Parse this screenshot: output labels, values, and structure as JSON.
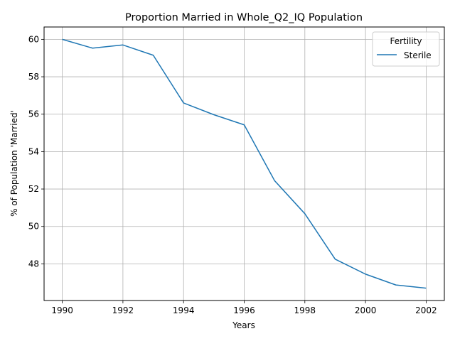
{
  "chart_data": {
    "type": "line",
    "title": "Proportion Married in Whole_Q2_IQ Population",
    "xlabel": "Years",
    "ylabel": "% of Population 'Married'",
    "x": [
      1990,
      1991,
      1992,
      1993,
      1994,
      1995,
      1996,
      1997,
      1998,
      1999,
      2000,
      2001,
      2002
    ],
    "series": [
      {
        "name": "Sterile",
        "color": "#1f77b4",
        "values": [
          60.0,
          59.53,
          59.7,
          59.15,
          56.6,
          55.97,
          55.43,
          52.45,
          50.68,
          48.25,
          47.45,
          46.87,
          46.7
        ]
      }
    ],
    "xlim": [
      1989.4,
      2002.6
    ],
    "ylim": [
      46.04,
      60.66
    ],
    "xticks": [
      1990,
      1992,
      1994,
      1996,
      1998,
      2000,
      2002
    ],
    "yticks": [
      48,
      50,
      52,
      54,
      56,
      58,
      60
    ],
    "grid": true,
    "legend": {
      "title": "Fertility",
      "placement": "top-right"
    }
  }
}
